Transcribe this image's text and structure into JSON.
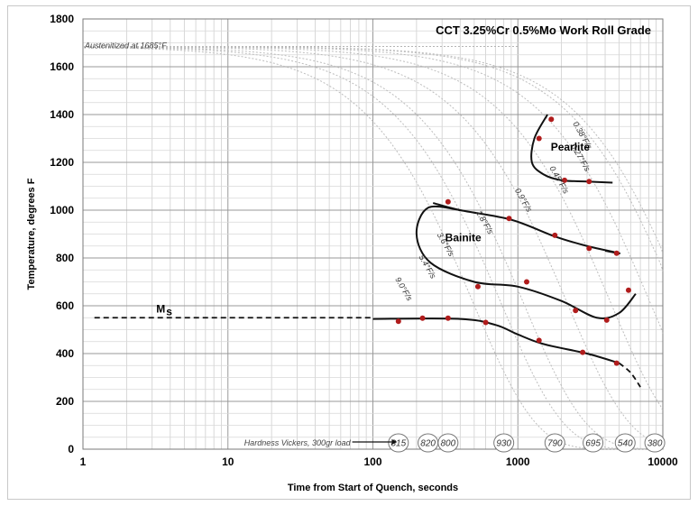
{
  "chart_data": {
    "type": "line",
    "title": "CCT  3.25%Cr  0.5%Mo  Work Roll Grade",
    "xlabel": "Time from Start of Quench, seconds",
    "ylabel": "Temperature, degrees F",
    "xscale": "log",
    "xlim": [
      1,
      10000
    ],
    "ylim": [
      0,
      1800
    ],
    "x_ticks": [
      "1",
      "10",
      "100",
      "1000",
      "10000"
    ],
    "y_ticks": [
      "0",
      "200",
      "400",
      "600",
      "800",
      "1000",
      "1200",
      "1400",
      "1600",
      "1800"
    ],
    "grid": true,
    "austenitized_note": "Austenitized at 1685°F",
    "ms_label": "M",
    "ms_subscript": "s",
    "ms_temperature": 550,
    "regions": [
      {
        "name": "Pearlite",
        "x": 2300,
        "y": 1250
      },
      {
        "name": "Bainite",
        "x": 420,
        "y": 870
      }
    ],
    "cooling_rates": [
      {
        "label": "0.38°F/s",
        "x_at_1400": 2600
      },
      {
        "label": "0.27°F/s",
        "x_at_1400": 2300
      },
      {
        "label": "0.45°F/s",
        "x_at_1400": 1500
      },
      {
        "label": "0.9°F/s",
        "x_at_1400": 800
      },
      {
        "label": "1.8°F/s",
        "x_at_1400": 400
      },
      {
        "label": "3.6°F/s",
        "x_at_1400": 200
      },
      {
        "label": "5.4°F/s",
        "x_at_1400": 140
      },
      {
        "label": "9.0°F/s",
        "x_at_1400": 90
      }
    ],
    "hardness_label": "Hardness Vickers, 300gr load",
    "hardness_values": [
      {
        "x": 150,
        "value": "815"
      },
      {
        "x": 240,
        "value": "820"
      },
      {
        "x": 330,
        "value": "800"
      },
      {
        "x": 800,
        "value": "930"
      },
      {
        "x": 1800,
        "value": "790"
      },
      {
        "x": 3300,
        "value": "695"
      },
      {
        "x": 5500,
        "value": "540"
      },
      {
        "x": 8800,
        "value": "380"
      }
    ],
    "series": [
      {
        "points": [
          [
            1600,
            1400
          ],
          [
            1300,
            1300
          ],
          [
            1250,
            1200
          ],
          [
            1500,
            1150
          ],
          [
            2000,
            1125
          ],
          [
            3000,
            1120
          ],
          [
            4500,
            1115
          ]
        ]
      },
      {
        "points": [
          [
            260,
            1030
          ],
          [
            400,
            1000
          ],
          [
            900,
            960
          ],
          [
            1800,
            890
          ],
          [
            3000,
            850
          ],
          [
            5000,
            820
          ],
          [
            4000,
            830
          ]
        ]
      },
      {
        "points": [
          [
            400,
            1000
          ],
          [
            240,
            1010
          ],
          [
            200,
            900
          ],
          [
            250,
            780
          ],
          [
            500,
            700
          ],
          [
            1000,
            680
          ],
          [
            2000,
            620
          ],
          [
            3500,
            550
          ],
          [
            5000,
            570
          ],
          [
            6500,
            650
          ]
        ]
      },
      {
        "points": [
          [
            100,
            545
          ],
          [
            400,
            545
          ],
          [
            700,
            520
          ],
          [
            1000,
            480
          ],
          [
            1500,
            440
          ],
          [
            3000,
            400
          ],
          [
            5000,
            360
          ]
        ]
      }
    ],
    "ms_dashed": [
      [
        1.2,
        550
      ],
      [
        100,
        550
      ]
    ],
    "ms_tail_dashed": [
      [
        5000,
        360
      ],
      [
        6000,
        320
      ],
      [
        7000,
        260
      ]
    ],
    "points": [
      [
        1700,
        1380
      ],
      [
        1400,
        1300
      ],
      [
        2100,
        1125
      ],
      [
        3100,
        1120
      ],
      [
        330,
        1035
      ],
      [
        870,
        965
      ],
      [
        1800,
        895
      ],
      [
        3100,
        840
      ],
      [
        4800,
        820
      ],
      [
        530,
        680
      ],
      [
        1150,
        700
      ],
      [
        5800,
        665
      ],
      [
        150,
        535
      ],
      [
        220,
        548
      ],
      [
        330,
        548
      ],
      [
        600,
        530
      ],
      [
        1400,
        455
      ],
      [
        2500,
        580
      ],
      [
        2800,
        405
      ],
      [
        4100,
        540
      ],
      [
        4800,
        360
      ]
    ]
  }
}
